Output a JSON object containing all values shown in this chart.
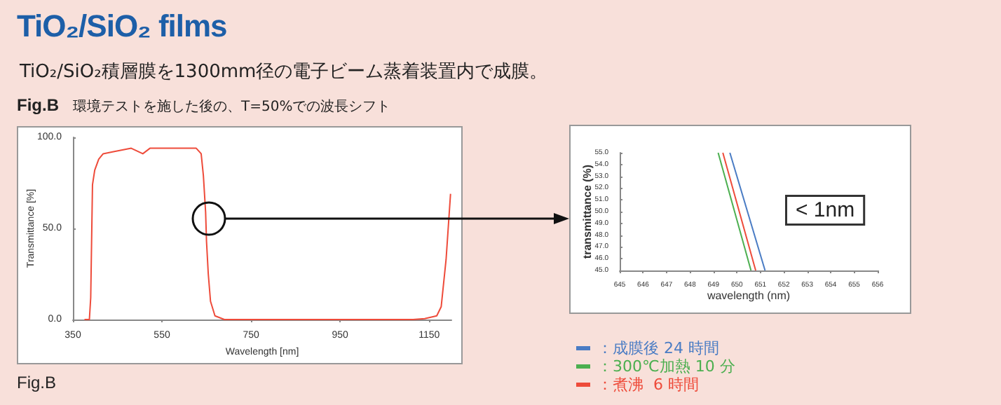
{
  "chart_data": [
    {
      "type": "line",
      "title": "TiO₂/SiO₂ films",
      "subtitle": "TiO₂/SiO₂積層膜を1300mm径の電子ビーム蒸着装置内で成膜。",
      "annotations": [
        "Fig.B",
        "環境テストを施した後の、T=50%での波長シフト",
        "Fig.B"
      ],
      "xlabel": "Wavelength [nm]",
      "ylabel": "Transmittance [%]",
      "xlim": [
        350,
        1200
      ],
      "xticks": [
        350,
        550,
        750,
        950,
        1150
      ],
      "ylim": [
        0,
        100
      ],
      "yticks": [
        {
          "value": 0,
          "label": "0.0"
        },
        {
          "value": 50,
          "label": "50.0"
        },
        {
          "value": 100,
          "label": "100.0"
        }
      ],
      "grid": false,
      "legend": false,
      "series": [
        {
          "color": "#ee4b3a",
          "x": [
            376,
            387,
            390,
            394,
            399,
            408,
            418,
            439,
            481,
            507,
            523,
            586,
            627,
            638,
            643,
            648,
            650,
            654,
            659,
            669,
            690,
            800,
            950,
            1114,
            1140,
            1167,
            1177,
            1188,
            1198
          ],
          "values": [
            0,
            0,
            12,
            74,
            82,
            88,
            91,
            92,
            94,
            91,
            94,
            94,
            94,
            91,
            79,
            59,
            43,
            25,
            10,
            2,
            0,
            0,
            0,
            0,
            0.5,
            2,
            7,
            33,
            69
          ]
        }
      ]
    },
    {
      "type": "line",
      "xlabel": "wavelength (nm)",
      "ylabel": "transmittance (%)",
      "annotations": [
        "< 1nm"
      ],
      "xlim": [
        645,
        656
      ],
      "xticks": [
        645,
        646,
        647,
        648,
        649,
        650,
        651,
        652,
        653,
        654,
        655,
        656
      ],
      "ylim": [
        45,
        55
      ],
      "yticks": [
        {
          "value": 45,
          "label": "45.0"
        },
        {
          "value": 46,
          "label": "46.0"
        },
        {
          "value": 47,
          "label": "47.0"
        },
        {
          "value": 48,
          "label": "48.0"
        },
        {
          "value": 49,
          "label": "49.0"
        },
        {
          "value": 50,
          "label": "50.0"
        },
        {
          "value": 51,
          "label": "51.0"
        },
        {
          "value": 52,
          "label": "52.0"
        },
        {
          "value": 53,
          "label": "53.0"
        },
        {
          "value": 54,
          "label": "54.0"
        },
        {
          "value": 55,
          "label": "55.0"
        }
      ],
      "grid": false,
      "legend": "bottom left",
      "series": [
        {
          "name": "：成膜後 24 時間",
          "color": "#4a7cc4",
          "x": [
            649.7,
            651.2
          ],
          "values": [
            55,
            45
          ]
        },
        {
          "name": "：300℃加熱 10 分",
          "color": "#4caf50",
          "x": [
            649.2,
            650.6
          ],
          "values": [
            55,
            45
          ]
        },
        {
          "name": "：煮沸  6 時間",
          "color": "#ee4b3a",
          "x": [
            649.4,
            650.8
          ],
          "values": [
            55,
            45
          ]
        }
      ]
    }
  ]
}
